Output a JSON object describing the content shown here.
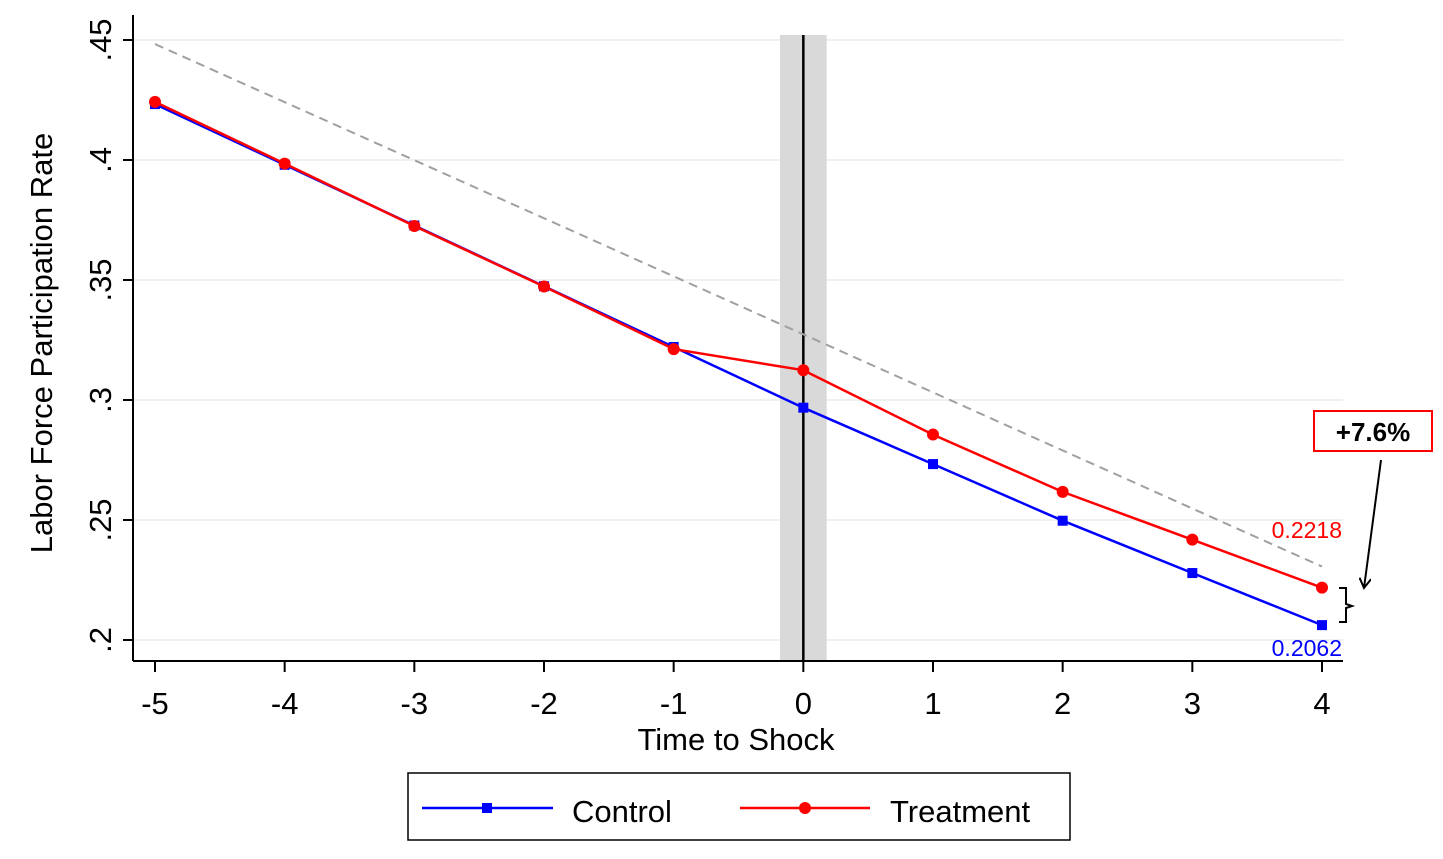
{
  "chart_data": {
    "type": "line",
    "title": "",
    "xlabel": "Time to Shock",
    "ylabel": "Labor Force Participation Rate",
    "x": [
      -5,
      -4,
      -3,
      -2,
      -1,
      0,
      1,
      2,
      3,
      4
    ],
    "xlim": [
      -5,
      4
    ],
    "ylim": [
      0.2,
      0.45
    ],
    "x_ticks": [
      -5,
      -4,
      -3,
      -2,
      -1,
      0,
      1,
      2,
      3,
      4
    ],
    "y_ticks": [
      0.2,
      0.25,
      0.3,
      0.35,
      0.4,
      0.45
    ],
    "y_tick_labels": [
      ".2",
      ".25",
      ".3",
      ".35",
      ".4",
      ".45"
    ],
    "grid": "horizontal",
    "legend_position": "bottom",
    "series": [
      {
        "name": "Control",
        "color": "#0000ff",
        "marker": "square",
        "values": [
          0.4233,
          0.398,
          0.3727,
          0.3474,
          0.3221,
          0.2968,
          0.2733,
          0.2497,
          0.2279,
          0.2062
        ]
      },
      {
        "name": "Treatment",
        "color": "#ff0000",
        "marker": "circle",
        "values": [
          0.4242,
          0.3985,
          0.3725,
          0.3473,
          0.3212,
          0.3124,
          0.2856,
          0.2617,
          0.2418,
          0.2218
        ]
      }
    ],
    "reference_line": {
      "style": "dashed",
      "color": "#a0a0a0",
      "from": [
        -5,
        0.4483
      ],
      "to": [
        4,
        0.2306
      ]
    },
    "shock_line": {
      "x": 0,
      "band_halfwidth": 0.18,
      "band_color": "#d9d9d9",
      "line_color": "#000000"
    },
    "annotations": {
      "treatment_end_label": "0.2218",
      "control_end_label": "0.2062",
      "gap_label": "+7.6%",
      "gap_box_color": "#ff0000"
    }
  }
}
